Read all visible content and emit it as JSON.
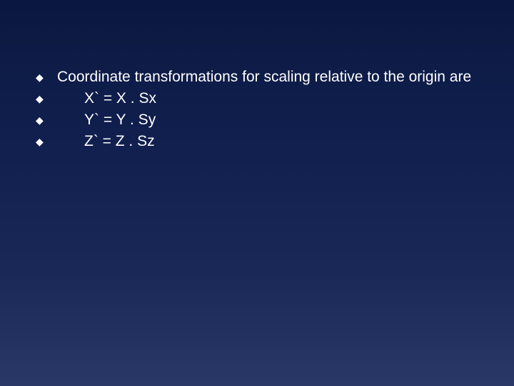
{
  "slide": {
    "background_gradient": [
      "#0a1840",
      "#122050",
      "#1a2858",
      "#2a3868"
    ],
    "text_color": "#ffffff",
    "bullet_marker": "◆",
    "body_fontsize": 21,
    "bullets": [
      {
        "text": "Coordinate transformations for scaling relative to the origin are",
        "indent": false
      },
      {
        "text": "X` = X . Sx",
        "indent": true
      },
      {
        "text": "Y` = Y . Sy",
        "indent": true
      },
      {
        "text": "Z` =  Z . Sz",
        "indent": true
      }
    ]
  }
}
